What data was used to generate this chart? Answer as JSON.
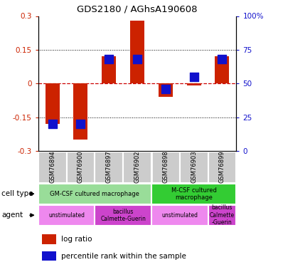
{
  "title": "GDS2180 / AGhsA190608",
  "samples": [
    "GSM76894",
    "GSM76900",
    "GSM76897",
    "GSM76902",
    "GSM76898",
    "GSM76903",
    "GSM76899"
  ],
  "log_ratios": [
    -0.18,
    -0.25,
    0.12,
    0.28,
    -0.06,
    -0.01,
    0.12
  ],
  "percentile_ranks": [
    20,
    20,
    68,
    68,
    46,
    55,
    68
  ],
  "ylim": [
    -0.3,
    0.3
  ],
  "ylim_right": [
    0,
    100
  ],
  "yticks_left": [
    -0.3,
    -0.15,
    0,
    0.15,
    0.3
  ],
  "yticks_right": [
    0,
    25,
    50,
    75,
    100
  ],
  "bar_color": "#cc2200",
  "pct_color": "#1111cc",
  "zero_line_color": "#cc0000",
  "dotted_line_color": "#000000",
  "bar_width": 0.5,
  "pct_marker_size": 80,
  "cell_types": [
    {
      "label": "GM-CSF cultured macrophage",
      "span": [
        0,
        4
      ],
      "color": "#99dd99"
    },
    {
      "label": "M-CSF cultured\nmacrophage",
      "span": [
        4,
        7
      ],
      "color": "#33cc33"
    }
  ],
  "agents": [
    {
      "label": "unstimulated",
      "span": [
        0,
        2
      ],
      "color": "#ee88ee"
    },
    {
      "label": "bacillus\nCalmette-Guerin",
      "span": [
        2,
        4
      ],
      "color": "#cc44cc"
    },
    {
      "label": "unstimulated",
      "span": [
        4,
        6
      ],
      "color": "#ee88ee"
    },
    {
      "label": "bacillus\nCalmette\n-Guerin",
      "span": [
        6,
        7
      ],
      "color": "#cc44cc"
    }
  ],
  "cell_type_label": "cell type",
  "agent_label": "agent",
  "legend_items": [
    "log ratio",
    "percentile rank within the sample"
  ],
  "sample_bg_color": "#cccccc",
  "sample_border_color": "#ffffff"
}
